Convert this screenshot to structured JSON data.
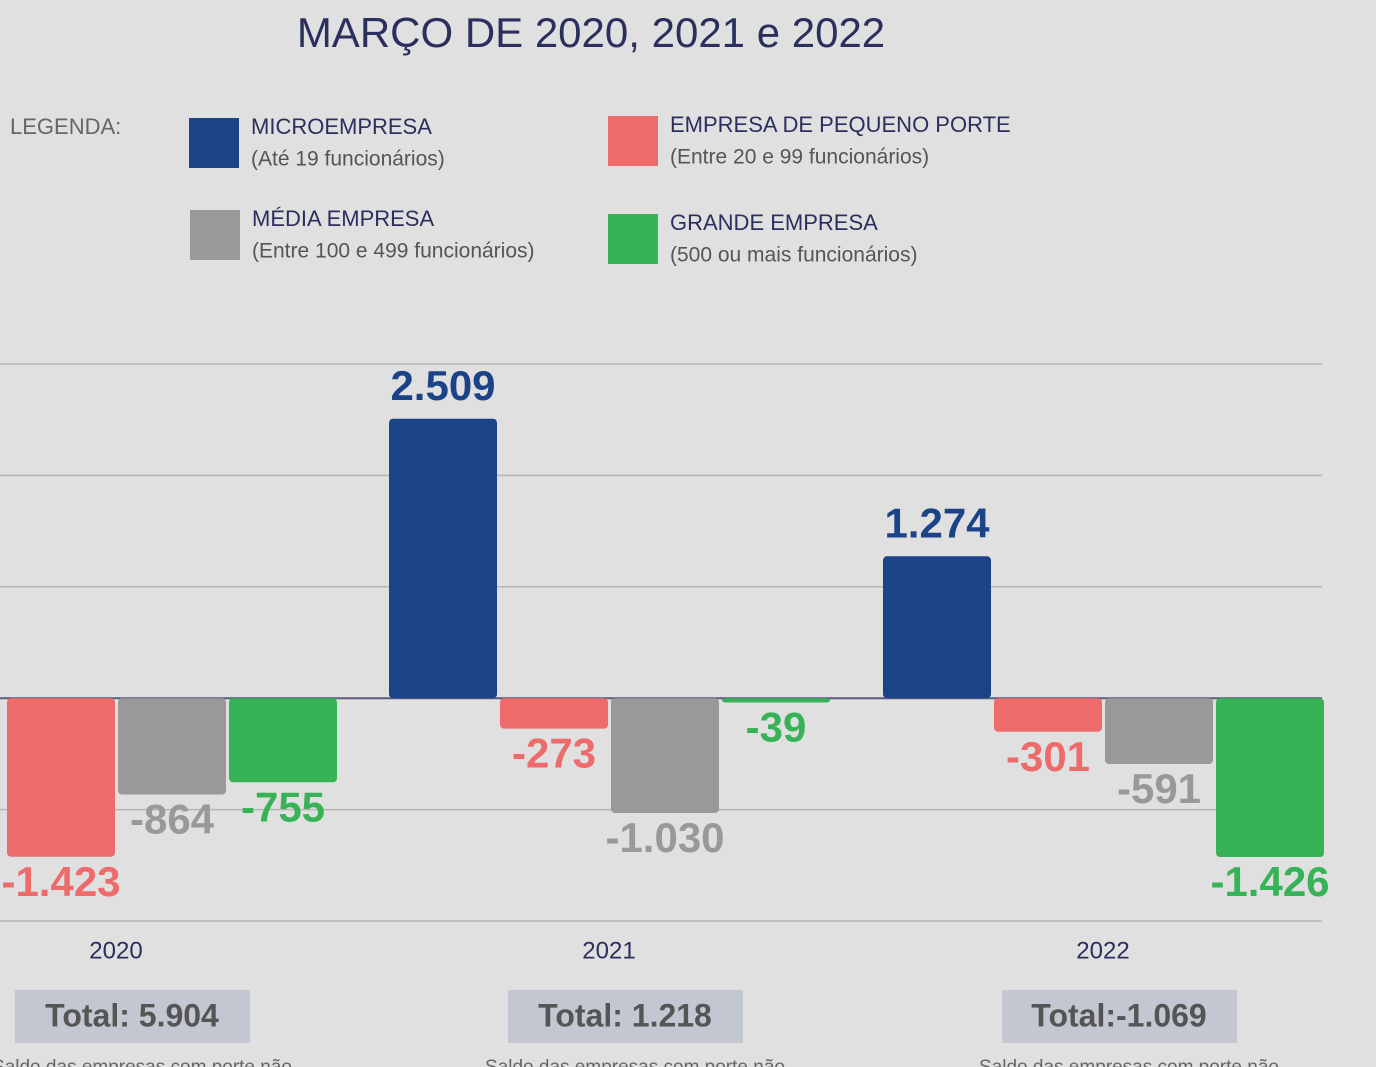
{
  "chart_data": {
    "type": "bar",
    "title": "MARÇO DE 2020, 2021 e 2022",
    "legend_title": "LEGENDA:",
    "categories": [
      "2020",
      "2021",
      "2022"
    ],
    "series": [
      {
        "name": "MICROEMPRESA",
        "description": "(Até 19 funcionários)",
        "color": "#1b4387",
        "values": [
          null,
          2509,
          1274
        ],
        "value_labels": [
          null,
          "2.509",
          "1.274"
        ]
      },
      {
        "name": "EMPRESA DE PEQUENO PORTE",
        "description": "(Entre 20 e 99 funcionários)",
        "color": "#ee6b6b",
        "values": [
          -1423,
          -273,
          -301
        ],
        "value_labels": [
          "-1.423",
          "-273",
          "-301"
        ]
      },
      {
        "name": "MÉDIA EMPRESA",
        "description": "(Entre 100 e 499 funcionários)",
        "color": "#999999",
        "values": [
          -864,
          -1030,
          -591
        ],
        "value_labels": [
          "-864",
          "-1.030",
          "-591"
        ]
      },
      {
        "name": "GRANDE EMPRESA",
        "description": "(500 ou mais funcionários)",
        "color": "#38b257",
        "values": [
          -755,
          -39,
          -1426
        ],
        "value_labels": [
          "-755",
          "-39",
          "-1.426"
        ]
      }
    ],
    "totals": [
      "Total: 5.904",
      "Total: 1.218",
      "Total:-1.069"
    ],
    "notes": [
      "Saldo das empresas com porte não",
      "Saldo das empresas com porte não",
      "Saldo das empresas com porte não"
    ],
    "ylim": [
      -2000,
      3000
    ],
    "yticks": [
      -2000,
      -1000,
      0,
      1000,
      2000,
      3000
    ],
    "grid": true
  }
}
